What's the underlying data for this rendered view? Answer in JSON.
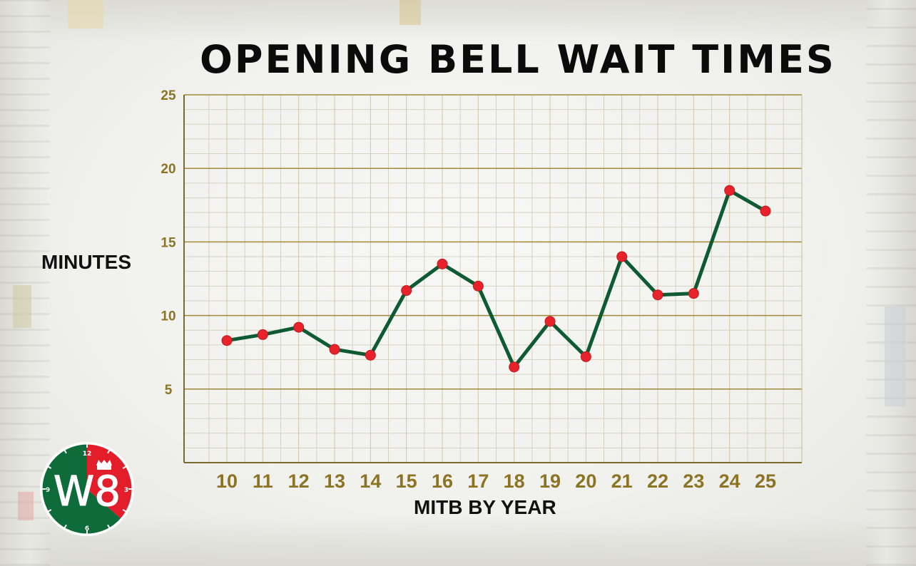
{
  "colors": {
    "line": "#0e5a33",
    "marker": "#e8222a",
    "major_grid": "#a08a3a",
    "minor_grid": "#d8d2c2",
    "tick_text": "#8c7425",
    "logo_green": "#0e6b3a",
    "logo_red": "#e31e2a"
  },
  "chart_data": {
    "type": "line",
    "title": "OPENING BELL WAIT TIMES",
    "xlabel": "MITB BY YEAR",
    "ylabel": "MINUTES",
    "categories": [
      "10",
      "11",
      "12",
      "13",
      "14",
      "15",
      "16",
      "17",
      "18",
      "19",
      "20",
      "21",
      "22",
      "23",
      "24",
      "25"
    ],
    "series": [
      {
        "values": [
          8.3,
          8.7,
          9.2,
          7.7,
          7.3,
          11.7,
          13.5,
          12.0,
          6.5,
          9.6,
          7.2,
          14.0,
          11.4,
          11.5,
          18.5,
          17.1
        ]
      }
    ],
    "yticks": [
      5,
      10,
      15,
      20,
      25
    ],
    "ylim": [
      0,
      25
    ],
    "grid": true,
    "legend": "none"
  },
  "logo": {
    "text": "W8",
    "dial_numbers": [
      "12",
      "3",
      "6",
      "9"
    ],
    "icon": "hourglass-crown-icon"
  }
}
